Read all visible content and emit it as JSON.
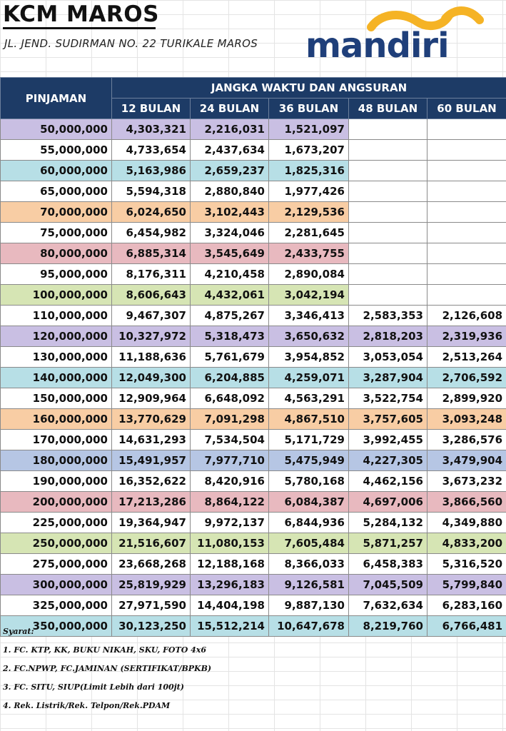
{
  "header": {
    "title": "KCM MAROS",
    "address": "JL. JEND. SUDIRMAN NO. 22 TURIKALE MAROS",
    "logo_text": "mandiri",
    "logo_colors": {
      "text": "#1f3f7a",
      "wave": "#f5b325"
    }
  },
  "table": {
    "col_loan": "PINJAMAN",
    "group_header": "JANGKA WAKTU DAN ANGSURAN",
    "terms": [
      "12 BULAN",
      "24 BULAN",
      "36 BULAN",
      "48 BULAN",
      "60 BULAN"
    ],
    "header_color": "#1d3b66",
    "rows": [
      {
        "amount": "50,000,000",
        "v": [
          "4,303,321",
          "2,216,031",
          "1,521,097",
          "",
          ""
        ],
        "color": "#c9bfe3"
      },
      {
        "amount": "55,000,000",
        "v": [
          "4,733,654",
          "2,437,634",
          "1,673,207",
          "",
          ""
        ],
        "color": "#ffffff"
      },
      {
        "amount": "60,000,000",
        "v": [
          "5,163,986",
          "2,659,237",
          "1,825,316",
          "",
          ""
        ],
        "color": "#b7dfe6"
      },
      {
        "amount": "65,000,000",
        "v": [
          "5,594,318",
          "2,880,840",
          "1,977,426",
          "",
          ""
        ],
        "color": "#ffffff"
      },
      {
        "amount": "70,000,000",
        "v": [
          "6,024,650",
          "3,102,443",
          "2,129,536",
          "",
          ""
        ],
        "color": "#f8cda4"
      },
      {
        "amount": "75,000,000",
        "v": [
          "6,454,982",
          "3,324,046",
          "2,281,645",
          "",
          ""
        ],
        "color": "#ffffff"
      },
      {
        "amount": "80,000,000",
        "v": [
          "6,885,314",
          "3,545,649",
          "2,433,755",
          "",
          ""
        ],
        "color": "#e8b9bf"
      },
      {
        "amount": "95,000,000",
        "v": [
          "8,176,311",
          "4,210,458",
          "2,890,084",
          "",
          ""
        ],
        "color": "#ffffff"
      },
      {
        "amount": "100,000,000",
        "v": [
          "8,606,643",
          "4,432,061",
          "3,042,194",
          "",
          ""
        ],
        "color": "#d6e5b4"
      },
      {
        "amount": "110,000,000",
        "v": [
          "9,467,307",
          "4,875,267",
          "3,346,413",
          "2,583,353",
          "2,126,608"
        ],
        "color": "#ffffff"
      },
      {
        "amount": "120,000,000",
        "v": [
          "10,327,972",
          "5,318,473",
          "3,650,632",
          "2,818,203",
          "2,319,936"
        ],
        "color": "#c9bfe3"
      },
      {
        "amount": "130,000,000",
        "v": [
          "11,188,636",
          "5,761,679",
          "3,954,852",
          "3,053,054",
          "2,513,264"
        ],
        "color": "#ffffff"
      },
      {
        "amount": "140,000,000",
        "v": [
          "12,049,300",
          "6,204,885",
          "4,259,071",
          "3,287,904",
          "2,706,592"
        ],
        "color": "#b7dfe6"
      },
      {
        "amount": "150,000,000",
        "v": [
          "12,909,964",
          "6,648,092",
          "4,563,291",
          "3,522,754",
          "2,899,920"
        ],
        "color": "#ffffff"
      },
      {
        "amount": "160,000,000",
        "v": [
          "13,770,629",
          "7,091,298",
          "4,867,510",
          "3,757,605",
          "3,093,248"
        ],
        "color": "#f8cda4"
      },
      {
        "amount": "170,000,000",
        "v": [
          "14,631,293",
          "7,534,504",
          "5,171,729",
          "3,992,455",
          "3,286,576"
        ],
        "color": "#ffffff"
      },
      {
        "amount": "180,000,000",
        "v": [
          "15,491,957",
          "7,977,710",
          "5,475,949",
          "4,227,305",
          "3,479,904"
        ],
        "color": "#b6c6e4"
      },
      {
        "amount": "190,000,000",
        "v": [
          "16,352,622",
          "8,420,916",
          "5,780,168",
          "4,462,156",
          "3,673,232"
        ],
        "color": "#ffffff"
      },
      {
        "amount": "200,000,000",
        "v": [
          "17,213,286",
          "8,864,122",
          "6,084,387",
          "4,697,006",
          "3,866,560"
        ],
        "color": "#e8b9bf"
      },
      {
        "amount": "225,000,000",
        "v": [
          "19,364,947",
          "9,972,137",
          "6,844,936",
          "5,284,132",
          "4,349,880"
        ],
        "color": "#ffffff"
      },
      {
        "amount": "250,000,000",
        "v": [
          "21,516,607",
          "11,080,153",
          "7,605,484",
          "5,871,257",
          "4,833,200"
        ],
        "color": "#d6e5b4"
      },
      {
        "amount": "275,000,000",
        "v": [
          "23,668,268",
          "12,188,168",
          "8,366,033",
          "6,458,383",
          "5,316,520"
        ],
        "color": "#ffffff"
      },
      {
        "amount": "300,000,000",
        "v": [
          "25,819,929",
          "13,296,183",
          "9,126,581",
          "7,045,509",
          "5,799,840"
        ],
        "color": "#c9bfe3"
      },
      {
        "amount": "325,000,000",
        "v": [
          "27,971,590",
          "14,404,198",
          "9,887,130",
          "7,632,634",
          "6,283,160"
        ],
        "color": "#ffffff"
      },
      {
        "amount": "350,000,000",
        "v": [
          "30,123,250",
          "15,512,214",
          "10,647,678",
          "8,219,760",
          "6,766,481"
        ],
        "color": "#b7dfe6"
      }
    ]
  },
  "requirements": {
    "heading": "Syarat:",
    "items": [
      "1. FC. KTP, KK, BUKU NIKAH, SKU, FOTO 4x6",
      "2. FC.NPWP, FC.JAMINAN (SERTIFIKAT/BPKB)",
      "3. FC. SITU, SIUP(Limit  Lebih dari 100jt)",
      "4. Rek. Listrik/Rek. Telpon/Rek.PDAM"
    ]
  }
}
